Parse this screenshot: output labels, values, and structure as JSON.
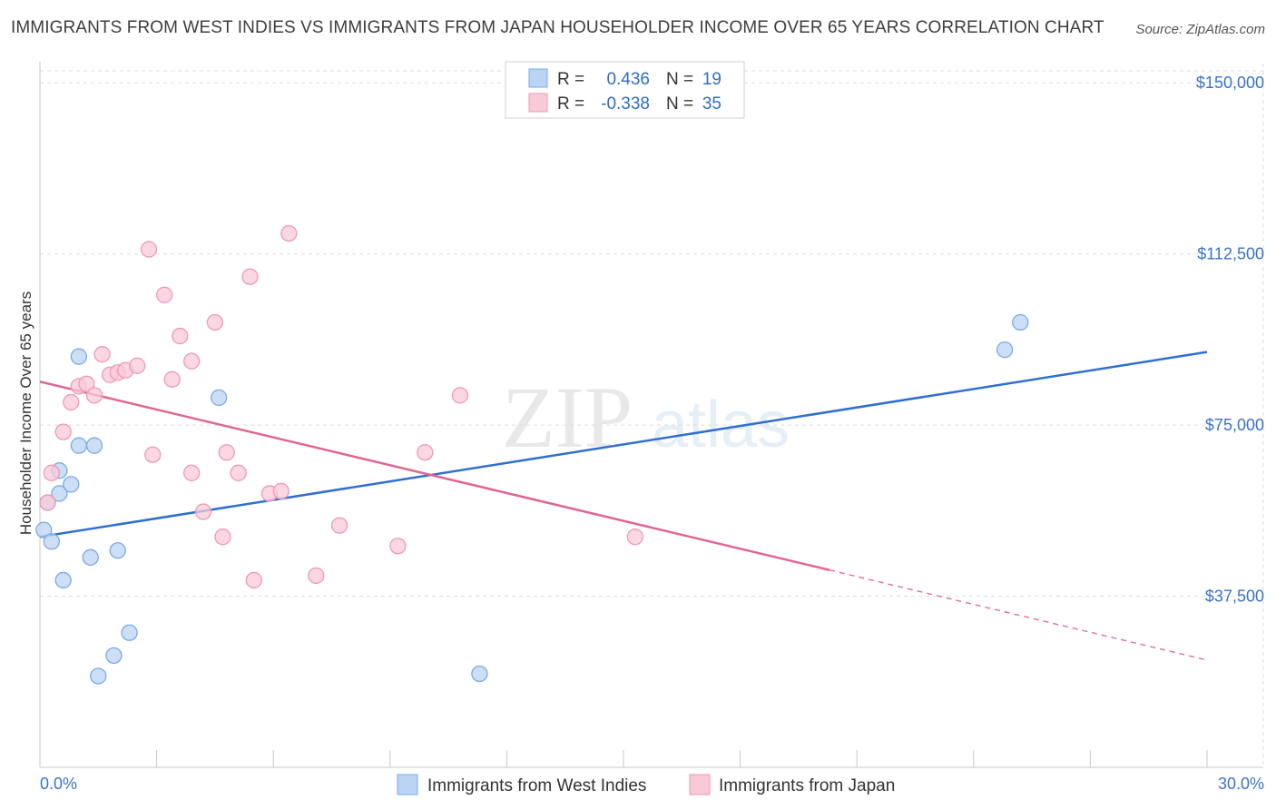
{
  "title": "IMMIGRANTS FROM WEST INDIES VS IMMIGRANTS FROM JAPAN HOUSEHOLDER INCOME OVER 65 YEARS CORRELATION CHART",
  "source": "Source: ZipAtlas.com",
  "watermark": {
    "zip": "ZIP",
    "atlas": "atlas"
  },
  "legend": {
    "r_label": "R =",
    "n_label": "N =",
    "rows": [
      {
        "r": "0.436",
        "n": "19"
      },
      {
        "r": "-0.338",
        "n": "35"
      }
    ]
  },
  "chart_data": {
    "type": "scatter",
    "ylabel": "Householder Income Over 65 years",
    "xlim": [
      0,
      30
    ],
    "ylim": [
      0,
      155000
    ],
    "x_tick_labels": [
      "0.0%",
      "30.0%"
    ],
    "y_ticks": [
      {
        "value": 37500,
        "label": "$37,500"
      },
      {
        "value": 75000,
        "label": "$75,000"
      },
      {
        "value": 112500,
        "label": "$112,500"
      },
      {
        "value": 150000,
        "label": "$150,000"
      }
    ],
    "series": [
      {
        "name": "Immigrants from West Indies",
        "color": "#7aaae6",
        "fill": "#bcd4f4",
        "line_color": "#2f6fd0",
        "trend": {
          "x": [
            0,
            30
          ],
          "y": [
            50500,
            91000
          ],
          "dashed_from": null
        },
        "points": [
          [
            0.1,
            52000
          ],
          [
            0.2,
            58000
          ],
          [
            0.3,
            49500
          ],
          [
            0.5,
            60000
          ],
          [
            0.5,
            65000
          ],
          [
            0.6,
            41000
          ],
          [
            0.8,
            62000
          ],
          [
            1.0,
            90000
          ],
          [
            1.0,
            70500
          ],
          [
            1.4,
            70500
          ],
          [
            1.3,
            46000
          ],
          [
            1.5,
            20000
          ],
          [
            1.9,
            24500
          ],
          [
            2.0,
            47500
          ],
          [
            2.3,
            29500
          ],
          [
            4.6,
            81000
          ],
          [
            11.3,
            20500
          ],
          [
            24.8,
            91500
          ],
          [
            25.2,
            97500
          ]
        ]
      },
      {
        "name": "Immigrants from Japan",
        "color": "#ee9ab3",
        "fill": "#f8cad8",
        "line_color": "#e0668f",
        "trend": {
          "x": [
            0,
            30
          ],
          "y": [
            84500,
            23500
          ],
          "dashed_from": 20.3
        },
        "points": [
          [
            0.2,
            58000
          ],
          [
            0.3,
            64500
          ],
          [
            0.6,
            73500
          ],
          [
            0.8,
            80000
          ],
          [
            1.0,
            83500
          ],
          [
            1.2,
            84000
          ],
          [
            1.4,
            81500
          ],
          [
            1.6,
            90500
          ],
          [
            1.8,
            86000
          ],
          [
            2.0,
            86500
          ],
          [
            2.2,
            87000
          ],
          [
            2.5,
            88000
          ],
          [
            2.8,
            113500
          ],
          [
            2.9,
            68500
          ],
          [
            3.2,
            103500
          ],
          [
            3.4,
            85000
          ],
          [
            3.6,
            94500
          ],
          [
            3.9,
            89000
          ],
          [
            3.9,
            64500
          ],
          [
            4.2,
            56000
          ],
          [
            4.5,
            97500
          ],
          [
            4.7,
            50500
          ],
          [
            4.8,
            69000
          ],
          [
            5.1,
            64500
          ],
          [
            5.4,
            107500
          ],
          [
            5.5,
            41000
          ],
          [
            5.9,
            60000
          ],
          [
            6.2,
            60500
          ],
          [
            6.4,
            117000
          ],
          [
            7.1,
            42000
          ],
          [
            7.7,
            53000
          ],
          [
            9.2,
            48500
          ],
          [
            9.9,
            69000
          ],
          [
            10.8,
            81500
          ],
          [
            15.3,
            50500
          ]
        ]
      }
    ]
  }
}
